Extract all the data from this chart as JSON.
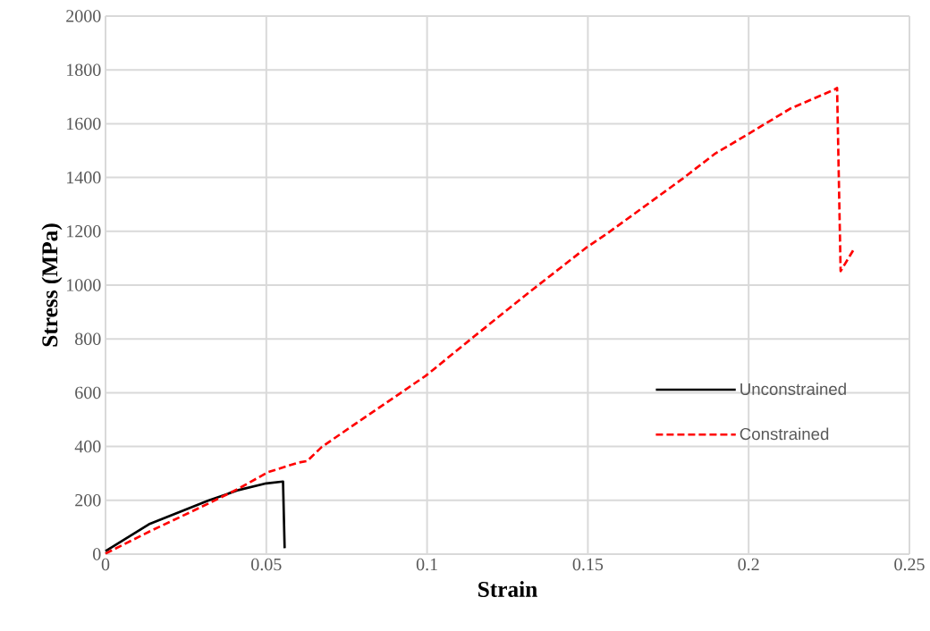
{
  "chart_data": {
    "type": "line",
    "xlabel": "Strain",
    "ylabel": "Stress (MPa)",
    "xlim": [
      0,
      0.25
    ],
    "xticks": [
      0,
      0.05,
      0.1,
      0.15,
      0.2,
      0.25
    ],
    "ylim": [
      0,
      2000
    ],
    "yticks": [
      0,
      200,
      400,
      600,
      800,
      1000,
      1200,
      1400,
      1600,
      1800,
      2000
    ],
    "grid": true,
    "legend": "right",
    "series": [
      {
        "name": "Unconstrained",
        "color": "#000000",
        "line_style": "solid",
        "x": [
          0,
          0.0135,
          0.032,
          0.0413,
          0.05,
          0.0552,
          0.0557
        ],
        "values": [
          11,
          111,
          199,
          238,
          263,
          270,
          22
        ]
      },
      {
        "name": "Constrained",
        "color": "#ff0000",
        "line_style": "dashed",
        "x": [
          0,
          0.0135,
          0.032,
          0.0413,
          0.0506,
          0.0599,
          0.0627,
          0.0673,
          0.0997,
          0.1145,
          0.1331,
          0.1497,
          0.1557,
          0.1794,
          0.1896,
          0.1998,
          0.2128,
          0.2267,
          0.2275,
          0.2286,
          0.2328
        ],
        "values": [
          2,
          83,
          188,
          243,
          305,
          340,
          346,
          399,
          664,
          808,
          986,
          1141,
          1189,
          1395,
          1489,
          1561,
          1655,
          1727,
          1733,
          1052,
          1135
        ]
      }
    ]
  }
}
